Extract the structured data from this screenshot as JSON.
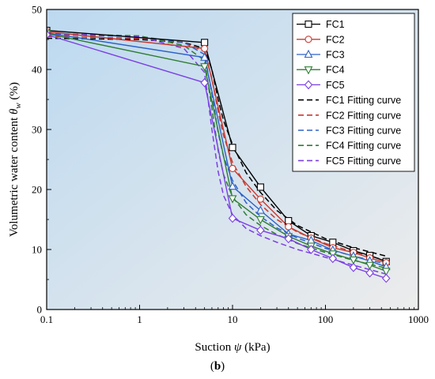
{
  "caption": {
    "open": "(",
    "letter": "b",
    "close": ")"
  },
  "chart_data": {
    "type": "line",
    "title": "",
    "xlabel_main": "Suction ",
    "xlabel_symbol": "ψ",
    "xlabel_unit": " (kPa)",
    "ylabel_main": "Volumetric water content ",
    "ylabel_symbol": "θ",
    "ylabel_sub": "w",
    "ylabel_unit": " (%)",
    "xscale": "log",
    "xlim": [
      0.1,
      1000
    ],
    "ylim": [
      0,
      50
    ],
    "x_ticks": [
      0.1,
      1,
      10,
      100,
      1000
    ],
    "x_tick_labels": [
      "0.1",
      "1",
      "10",
      "100",
      "1000"
    ],
    "y_ticks": [
      0,
      10,
      20,
      30,
      40,
      50
    ],
    "y_tick_labels": [
      "0",
      "10",
      "20",
      "30",
      "40",
      "50"
    ],
    "grid": false,
    "legend_position": "top-right",
    "series": [
      {
        "name": "FC1",
        "kind": "measured",
        "color": "#000000",
        "marker": "square",
        "x": [
          0.1,
          5,
          10,
          20,
          40,
          70,
          120,
          200,
          300,
          450
        ],
        "y": [
          46.5,
          44.5,
          27.0,
          20.4,
          14.8,
          12.3,
          11.2,
          9.8,
          9.0,
          8.0
        ]
      },
      {
        "name": "FC2",
        "kind": "measured",
        "color": "#c8392f",
        "marker": "circle",
        "x": [
          0.1,
          5,
          10,
          20,
          40,
          70,
          120,
          200,
          300,
          450
        ],
        "y": [
          46.3,
          43.5,
          23.5,
          18.4,
          13.8,
          11.9,
          10.3,
          9.5,
          8.6,
          7.8
        ]
      },
      {
        "name": "FC3",
        "kind": "measured",
        "color": "#2e62c8",
        "marker": "triangle-up",
        "x": [
          0.1,
          5,
          10,
          20,
          40,
          70,
          120,
          200,
          300,
          450
        ],
        "y": [
          46.1,
          42.0,
          20.5,
          16.5,
          12.6,
          11.5,
          9.9,
          8.9,
          8.1,
          7.1
        ]
      },
      {
        "name": "FC4",
        "kind": "measured",
        "color": "#2e7d32",
        "marker": "triangle-down",
        "x": [
          0.1,
          5,
          10,
          20,
          40,
          70,
          120,
          200,
          300,
          450
        ],
        "y": [
          46.0,
          40.5,
          18.5,
          15.0,
          12.2,
          10.6,
          9.3,
          8.3,
          7.4,
          6.4
        ]
      },
      {
        "name": "FC5",
        "kind": "measured",
        "color": "#7b3fe4",
        "marker": "diamond",
        "x": [
          0.1,
          5,
          10,
          20,
          40,
          70,
          120,
          200,
          300,
          450
        ],
        "y": [
          45.8,
          37.8,
          15.2,
          13.2,
          11.8,
          10.0,
          8.5,
          7.0,
          6.1,
          5.2
        ]
      },
      {
        "name": "FC1 Fitting curve",
        "kind": "fit",
        "color": "#000000",
        "x": [
          0.1,
          1,
          3,
          5,
          6,
          7,
          8,
          10,
          14,
          20,
          30,
          50,
          100,
          200,
          450
        ],
        "y": [
          45.2,
          45.0,
          44.5,
          43.5,
          40.0,
          35.0,
          31.5,
          27.5,
          22.8,
          19.5,
          16.5,
          14.0,
          11.8,
          10.3,
          8.9
        ]
      },
      {
        "name": "FC2 Fitting curve",
        "kind": "fit",
        "color": "#c8392f",
        "x": [
          0.1,
          1,
          3,
          5,
          6,
          7,
          8,
          10,
          14,
          20,
          30,
          50,
          100,
          200,
          450
        ],
        "y": [
          45.5,
          45.2,
          44.5,
          43.0,
          38.5,
          33.0,
          29.0,
          24.5,
          20.5,
          17.5,
          15.0,
          12.9,
          11.0,
          9.6,
          8.2
        ]
      },
      {
        "name": "FC3 Fitting curve",
        "kind": "fit",
        "color": "#2e62c8",
        "x": [
          0.1,
          1,
          3,
          5,
          6,
          7,
          8,
          10,
          14,
          20,
          30,
          50,
          100,
          200,
          450
        ],
        "y": [
          45.8,
          45.5,
          44.5,
          42.5,
          36.0,
          29.5,
          25.5,
          21.5,
          17.8,
          15.5,
          13.6,
          11.9,
          10.2,
          8.9,
          7.6
        ]
      },
      {
        "name": "FC4 Fitting curve",
        "kind": "fit",
        "color": "#2e7d32",
        "x": [
          0.1,
          1,
          3,
          5,
          6,
          7,
          8,
          10,
          14,
          20,
          30,
          50,
          100,
          200,
          450
        ],
        "y": [
          46.0,
          45.6,
          44.0,
          41.5,
          33.5,
          26.5,
          22.5,
          18.8,
          15.8,
          14.0,
          12.5,
          11.0,
          9.5,
          8.2,
          6.9
        ]
      },
      {
        "name": "FC5 Fitting curve",
        "kind": "fit",
        "color": "#7b3fe4",
        "x": [
          0.1,
          1,
          3,
          5,
          6,
          7,
          8,
          10,
          14,
          20,
          30,
          50,
          100,
          200,
          450
        ],
        "y": [
          46.0,
          45.5,
          43.5,
          39.5,
          30.0,
          23.0,
          19.0,
          15.8,
          13.5,
          12.3,
          11.2,
          10.0,
          8.7,
          7.4,
          5.9
        ]
      }
    ]
  }
}
